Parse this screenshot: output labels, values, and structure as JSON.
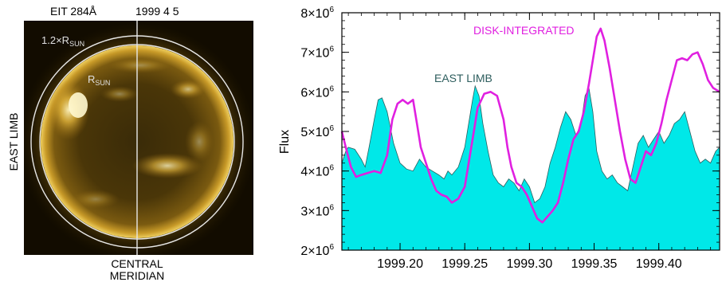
{
  "image_panel": {
    "title_left": "EIT 284Å",
    "title_right": "1999 4 5",
    "outer_circle_label": "1.2×R",
    "outer_circle_sub": "SUN",
    "inner_circle_label": "R",
    "inner_circle_sub": "SUN",
    "side_label": "EAST LIMB",
    "bottom_label_line1": "CENTRAL",
    "bottom_label_line2": "MERIDIAN"
  },
  "chart_data": {
    "type": "area",
    "xlabel": "",
    "ylabel": "Flux",
    "xlim": [
      1999.155,
      1999.447
    ],
    "ylim": [
      2000000,
      8000000
    ],
    "x_ticks": [
      1999.2,
      1999.25,
      1999.3,
      1999.35,
      1999.4
    ],
    "x_tick_labels": [
      "1999.20",
      "1999.25",
      "1999.30",
      "1999.35",
      "1999.40"
    ],
    "y_ticks": [
      2000000,
      3000000,
      4000000,
      5000000,
      6000000,
      7000000,
      8000000
    ],
    "y_tick_labels": [
      {
        "mantissa": "2×10",
        "exp": "6"
      },
      {
        "mantissa": "3×10",
        "exp": "6"
      },
      {
        "mantissa": "4×10",
        "exp": "6"
      },
      {
        "mantissa": "5×10",
        "exp": "6"
      },
      {
        "mantissa": "6×10",
        "exp": "6"
      },
      {
        "mantissa": "7×10",
        "exp": "6"
      },
      {
        "mantissa": "8×10",
        "exp": "6"
      }
    ],
    "colors": {
      "east_limb_fill": "#00e8e8",
      "east_limb_line": "#2e5e5e",
      "disk_integrated": "#e020e0"
    },
    "series": [
      {
        "name": "EAST LIMB",
        "style": "filled-area",
        "x": [
          1999.155,
          1999.158,
          1999.16,
          1999.165,
          1999.17,
          1999.173,
          1999.176,
          1999.18,
          1999.183,
          1999.186,
          1999.19,
          1999.195,
          1999.2,
          1999.205,
          1999.21,
          1999.215,
          1999.22,
          1999.225,
          1999.23,
          1999.234,
          1999.237,
          1999.24,
          1999.245,
          1999.25,
          1999.253,
          1999.256,
          1999.258,
          1999.261,
          1999.264,
          1999.268,
          1999.272,
          1999.276,
          1999.28,
          1999.284,
          1999.288,
          1999.292,
          1999.296,
          1999.3,
          1999.304,
          1999.308,
          1999.312,
          1999.316,
          1999.32,
          1999.324,
          1999.328,
          1999.332,
          1999.336,
          1999.34,
          1999.343,
          1999.346,
          1999.349,
          1999.352,
          1999.356,
          1999.36,
          1999.364,
          1999.368,
          1999.372,
          1999.376,
          1999.38,
          1999.384,
          1999.388,
          1999.392,
          1999.396,
          1999.4,
          1999.404,
          1999.408,
          1999.412,
          1999.416,
          1999.42,
          1999.424,
          1999.428,
          1999.432,
          1999.436,
          1999.44,
          1999.444,
          1999.447
        ],
        "y": [
          4200000,
          4500000,
          4600000,
          4550000,
          4300000,
          4100000,
          4600000,
          5300000,
          5800000,
          5850000,
          5500000,
          4700000,
          4200000,
          4050000,
          4000000,
          4300000,
          4100000,
          4000000,
          3900000,
          3800000,
          4000000,
          3900000,
          4100000,
          4600000,
          5200000,
          5800000,
          6150000,
          5900000,
          5200000,
          4500000,
          3900000,
          3700000,
          3600000,
          3800000,
          3700000,
          3500000,
          3800000,
          3600000,
          3200000,
          3300000,
          3600000,
          4200000,
          4600000,
          5100000,
          5500000,
          5300000,
          4900000,
          5200000,
          5900000,
          6100000,
          5500000,
          4500000,
          4000000,
          3800000,
          3900000,
          3700000,
          3600000,
          3500000,
          4100000,
          4700000,
          4900000,
          4600000,
          4800000,
          5000000,
          4700000,
          4900000,
          5200000,
          5300000,
          5500000,
          5000000,
          4500000,
          4200000,
          4300000,
          4200000,
          4500000,
          4600000
        ]
      },
      {
        "name": "DISK-INTEGRATED",
        "style": "line",
        "x": [
          1999.155,
          1999.158,
          1999.162,
          1999.166,
          1999.17,
          1999.175,
          1999.18,
          1999.185,
          1999.19,
          1999.194,
          1999.198,
          1999.202,
          1999.206,
          1999.21,
          1999.213,
          1999.216,
          1999.22,
          1999.224,
          1999.228,
          1999.232,
          1999.236,
          1999.24,
          1999.245,
          1999.25,
          1999.253,
          1999.256,
          1999.26,
          1999.265,
          1999.27,
          1999.275,
          1999.28,
          1999.283,
          1999.286,
          1999.29,
          1999.294,
          1999.298,
          1999.302,
          1999.306,
          1999.31,
          1999.314,
          1999.318,
          1999.322,
          1999.326,
          1999.33,
          1999.334,
          1999.338,
          1999.342,
          1999.346,
          1999.349,
          1999.352,
          1999.355,
          1999.358,
          1999.362,
          1999.366,
          1999.37,
          1999.374,
          1999.378,
          1999.382,
          1999.386,
          1999.39,
          1999.394,
          1999.398,
          1999.402,
          1999.406,
          1999.41,
          1999.414,
          1999.418,
          1999.422,
          1999.426,
          1999.43,
          1999.434,
          1999.438,
          1999.442,
          1999.447
        ],
        "y": [
          5000000,
          4600000,
          4100000,
          3850000,
          3900000,
          3950000,
          4000000,
          3950000,
          4400000,
          5300000,
          5700000,
          5800000,
          5700000,
          5800000,
          5200000,
          4600000,
          4200000,
          3800000,
          3500000,
          3400000,
          3350000,
          3200000,
          3300000,
          3600000,
          4200000,
          4800000,
          5600000,
          5950000,
          6000000,
          5900000,
          5300000,
          4600000,
          4100000,
          3700000,
          3600000,
          3400000,
          3100000,
          2800000,
          2700000,
          2850000,
          3000000,
          3200000,
          3700000,
          4300000,
          4800000,
          5000000,
          5500000,
          6200000,
          6800000,
          7400000,
          7600000,
          7300000,
          6600000,
          5800000,
          5000000,
          4300000,
          3800000,
          3700000,
          4100000,
          4500000,
          4400000,
          4700000,
          5200000,
          5800000,
          6300000,
          6800000,
          6850000,
          6800000,
          6950000,
          7000000,
          6700000,
          6300000,
          6100000,
          6000000
        ]
      }
    ]
  }
}
